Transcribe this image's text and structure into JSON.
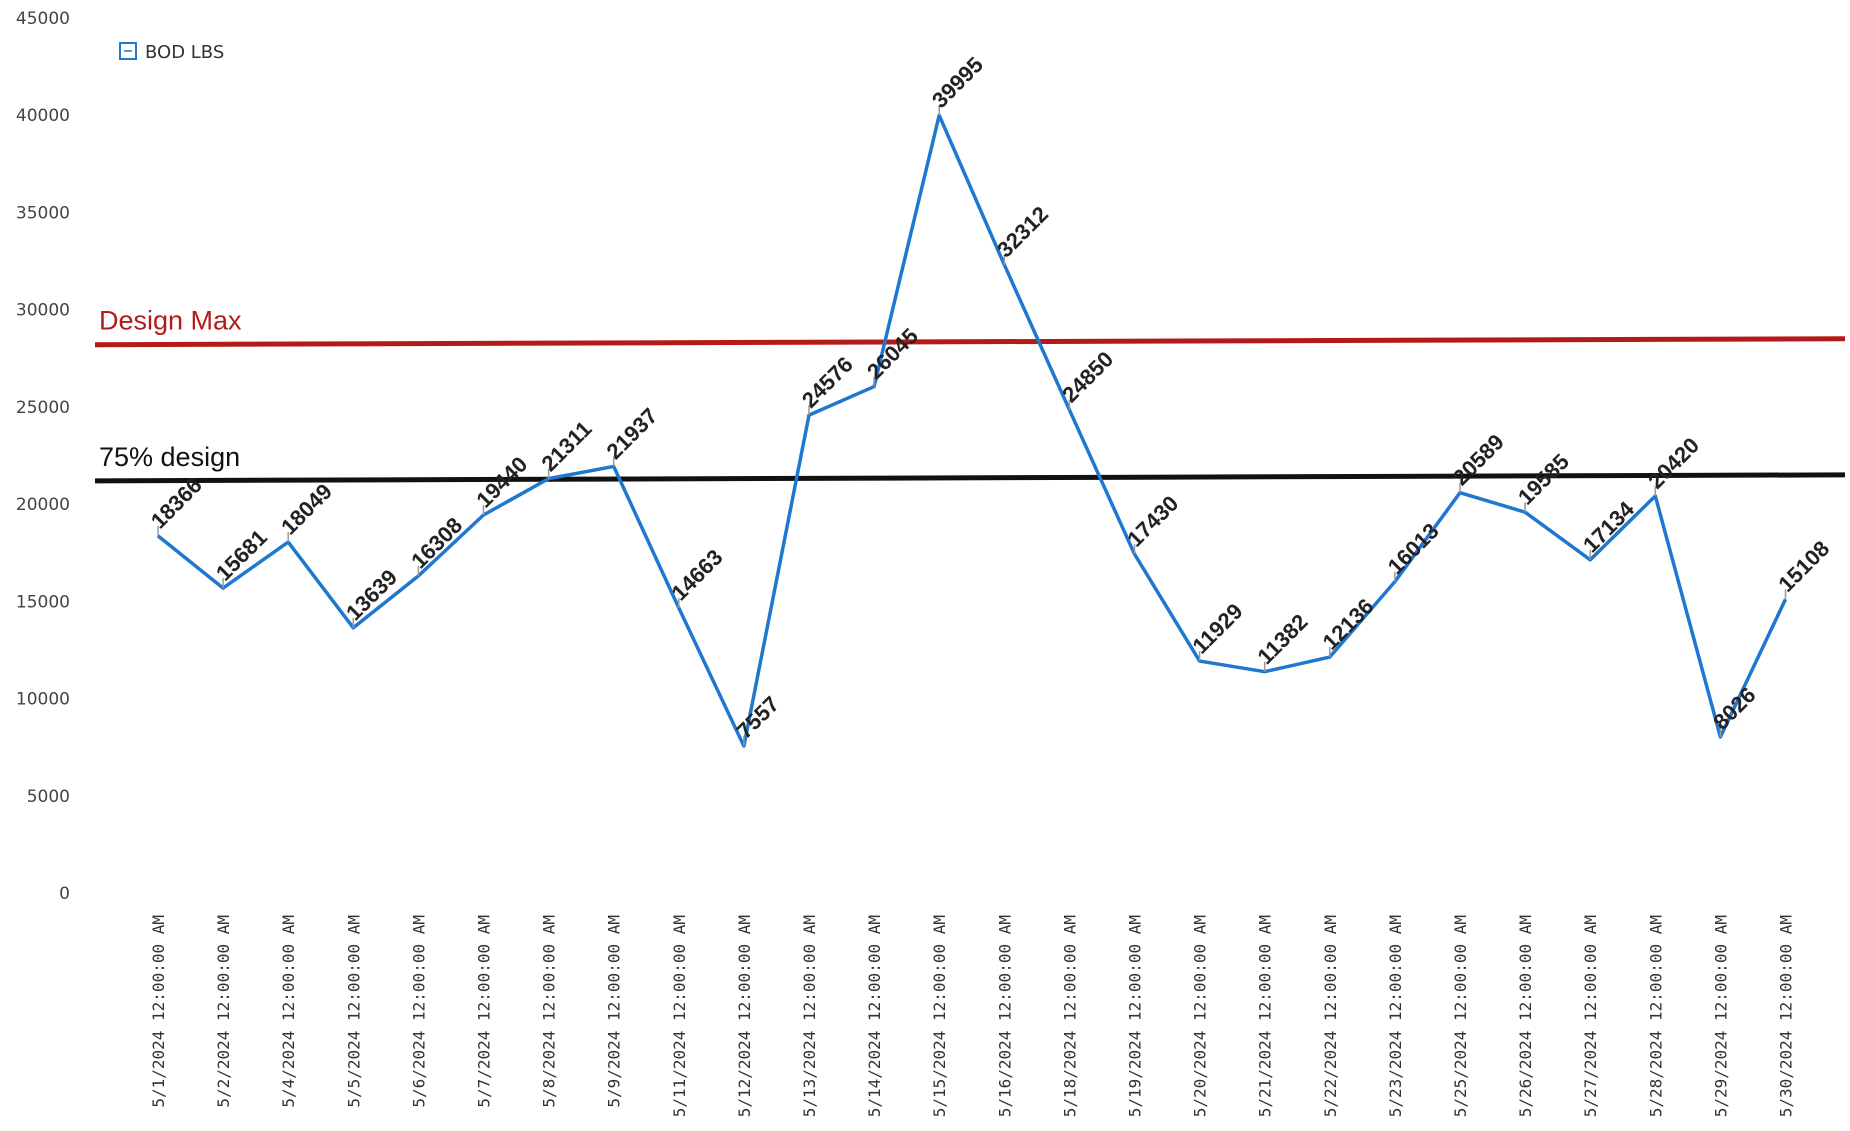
{
  "chart_data": {
    "type": "line",
    "title": "",
    "xlabel": "",
    "ylabel": "",
    "ylim": [
      0,
      45000
    ],
    "yticks": [
      0,
      5000,
      10000,
      15000,
      20000,
      25000,
      30000,
      35000,
      40000,
      45000
    ],
    "categories": [
      "5/1/2024 12:00:00 AM",
      "5/2/2024 12:00:00 AM",
      "5/4/2024 12:00:00 AM",
      "5/5/2024 12:00:00 AM",
      "5/6/2024 12:00:00 AM",
      "5/7/2024 12:00:00 AM",
      "5/8/2024 12:00:00 AM",
      "5/9/2024 12:00:00 AM",
      "5/11/2024 12:00:00 AM",
      "5/12/2024 12:00:00 AM",
      "5/13/2024 12:00:00 AM",
      "5/14/2024 12:00:00 AM",
      "5/15/2024 12:00:00 AM",
      "5/16/2024 12:00:00 AM",
      "5/18/2024 12:00:00 AM",
      "5/19/2024 12:00:00 AM",
      "5/20/2024 12:00:00 AM",
      "5/21/2024 12:00:00 AM",
      "5/22/2024 12:00:00 AM",
      "5/23/2024 12:00:00 AM",
      "5/25/2024 12:00:00 AM",
      "5/26/2024 12:00:00 AM",
      "5/27/2024 12:00:00 AM",
      "5/28/2024 12:00:00 AM",
      "5/29/2024 12:00:00 AM",
      "5/30/2024 12:00:00 AM"
    ],
    "series": [
      {
        "name": "BOD LBS",
        "color": "#1f77d0",
        "values": [
          18366,
          15681,
          18049,
          13639,
          16308,
          19440,
          21311,
          21937,
          14663,
          7557,
          24576,
          26045,
          39995,
          32312,
          24850,
          17430,
          11929,
          11382,
          12136,
          16013,
          20589,
          19585,
          17134,
          20420,
          8026,
          15108
        ]
      }
    ],
    "data_labels": [
      "18366",
      "15681",
      "18049",
      "13639",
      "16308",
      "19440",
      "21311",
      "21937",
      "14663",
      "7557",
      "24576",
      "26045",
      "39995",
      "32312",
      "24850",
      "17430",
      "11929",
      "11382",
      "12136",
      "16013",
      "20589",
      "19585",
      "17134",
      "20420",
      "8026",
      "15108"
    ],
    "reference_lines": [
      {
        "label": "Design Max",
        "value": 28300,
        "color": "#b51a1a"
      },
      {
        "label": "75% design",
        "value": 21300,
        "color": "#111111"
      }
    ],
    "legend": {
      "placement": "top-left",
      "entries": [
        "BOD LBS"
      ]
    },
    "grid": false
  }
}
